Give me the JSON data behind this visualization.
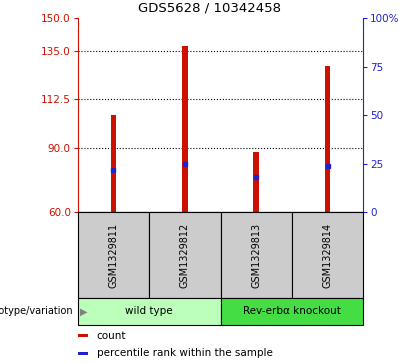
{
  "title": "GDS5628 / 10342458",
  "samples": [
    "GSM1329811",
    "GSM1329812",
    "GSM1329813",
    "GSM1329814"
  ],
  "counts": [
    105,
    137,
    88,
    128
  ],
  "percentiles": [
    22,
    25,
    18,
    24
  ],
  "ylim_left": [
    60,
    150
  ],
  "ylim_right": [
    0,
    100
  ],
  "yticks_left": [
    60,
    90,
    112.5,
    135,
    150
  ],
  "yticks_right": [
    0,
    25,
    50,
    75,
    100
  ],
  "bar_color": "#cc1100",
  "percentile_color": "#2222cc",
  "bar_width": 0.08,
  "groups": [
    {
      "label": "wild type",
      "samples": [
        0,
        1
      ],
      "color": "#bbffbb"
    },
    {
      "label": "Rev-erbα knockout",
      "samples": [
        2,
        3
      ],
      "color": "#44dd44"
    }
  ],
  "group_label": "genotype/variation",
  "legend_items": [
    {
      "color": "#cc1100",
      "label": "count"
    },
    {
      "color": "#2222cc",
      "label": "percentile rank within the sample"
    }
  ],
  "plot_bg": "#ffffff",
  "sample_area_color": "#cccccc",
  "title_fontsize": 9.5
}
